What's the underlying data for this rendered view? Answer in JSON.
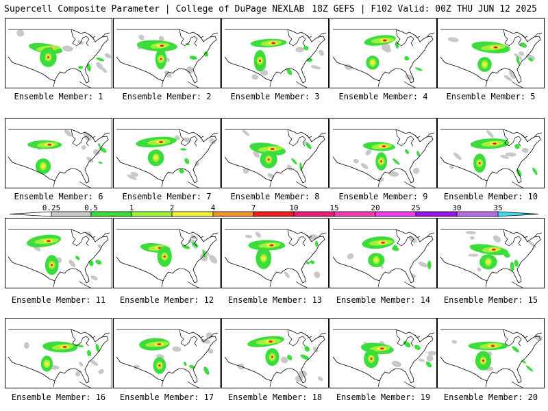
{
  "header": {
    "left_title": "Supercell Composite Parameter | College of DuPage NEXLAB",
    "right_title": "18Z GEFS | F102 Valid: 00Z THU JUN 12 2025"
  },
  "members": [
    {
      "label": "Ensemble Member: 1"
    },
    {
      "label": "Ensemble Member: 2"
    },
    {
      "label": "Ensemble Member: 3"
    },
    {
      "label": "Ensemble Member: 4"
    },
    {
      "label": "Ensemble Member: 5"
    },
    {
      "label": "Ensemble Member: 6"
    },
    {
      "label": "Ensemble Member: 7"
    },
    {
      "label": "Ensemble Member: 8"
    },
    {
      "label": "Ensemble Member: 9"
    },
    {
      "label": "Ensemble Member: 10"
    },
    {
      "label": "Ensemble Member: 11"
    },
    {
      "label": "Ensemble Member: 12"
    },
    {
      "label": "Ensemble Member: 13"
    },
    {
      "label": "Ensemble Member: 14"
    },
    {
      "label": "Ensemble Member: 15"
    },
    {
      "label": "Ensemble Member: 16"
    },
    {
      "label": "Ensemble Member: 17"
    },
    {
      "label": "Ensemble Member: 18"
    },
    {
      "label": "Ensemble Member: 19"
    },
    {
      "label": "Ensemble Member: 20"
    }
  ],
  "legend": {
    "ticks": [
      "0.25",
      "0.5",
      "1",
      "2",
      "4",
      "7",
      "10",
      "15",
      "20",
      "25",
      "30",
      "35"
    ],
    "colors": [
      "#c8c8c8",
      "#3cdc3c",
      "#a0f03c",
      "#f0f03c",
      "#f09628",
      "#f01e1e",
      "#e61e78",
      "#f03cb4",
      "#f03cf0",
      "#9614e6",
      "#b46ee6",
      "#3cdcf0"
    ]
  }
}
